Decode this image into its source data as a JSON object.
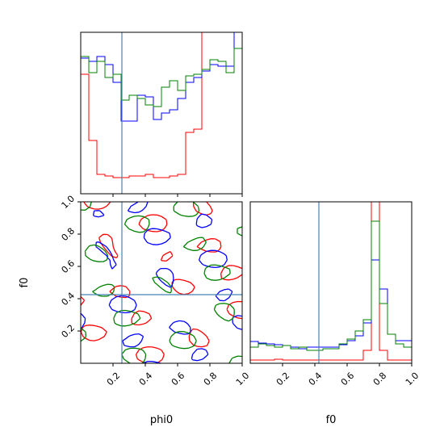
{
  "chart_data": {
    "type": "corner",
    "parameters": [
      "phi0",
      "f0"
    ],
    "truths": {
      "phi0": 0.255,
      "f0": 0.425
    },
    "truth_color": "#4682b4",
    "series": [
      {
        "color": "#ff0000"
      },
      {
        "color": "#0000ff"
      },
      {
        "color": "#008000"
      }
    ],
    "range": [
      0.0,
      1.0
    ],
    "ticks": [
      "0.2",
      "0.4",
      "0.6",
      "0.8",
      "1.0"
    ],
    "tick_values": [
      0.2,
      0.4,
      0.6,
      0.8,
      1.0
    ],
    "hist_phi0": {
      "bins": 20,
      "ylim": [
        0,
        1.0
      ],
      "counts": [
        [
          0.74,
          0.33,
          0.12,
          0.11,
          0.1,
          0.1,
          0.11,
          0.11,
          0.12,
          0.1,
          0.1,
          0.11,
          0.12,
          0.38,
          0.4,
          1.2,
          1.2,
          1.2,
          1.2,
          1.2
        ],
        [
          0.84,
          0.82,
          0.85,
          0.8,
          0.69,
          0.45,
          0.45,
          0.61,
          0.6,
          0.46,
          0.5,
          0.52,
          0.59,
          0.69,
          0.72,
          0.76,
          0.8,
          0.79,
          0.79,
          1.0
        ],
        [
          0.85,
          0.75,
          0.82,
          0.72,
          0.74,
          0.58,
          0.61,
          0.59,
          0.55,
          0.54,
          0.66,
          0.7,
          0.64,
          0.73,
          0.74,
          0.77,
          0.83,
          0.82,
          0.75,
          0.9
        ]
      ]
    },
    "hist_f0": {
      "bins": 20,
      "ylim": [
        0,
        1.0
      ],
      "counts": [
        [
          0.02,
          0.02,
          0.02,
          0.025,
          0.02,
          0.02,
          0.02,
          0.02,
          0.02,
          0.02,
          0.02,
          0.02,
          0.02,
          0.02,
          0.08,
          1.2,
          0.08,
          0.02,
          0.02,
          0.02
        ],
        [
          0.135,
          0.125,
          0.12,
          0.115,
          0.11,
          0.1,
          0.09,
          0.1,
          0.1,
          0.1,
          0.1,
          0.115,
          0.14,
          0.17,
          0.25,
          0.64,
          0.46,
          0.18,
          0.14,
          0.14
        ],
        [
          0.1,
          0.12,
          0.11,
          0.1,
          0.11,
          0.09,
          0.1,
          0.08,
          0.08,
          0.09,
          0.09,
          0.12,
          0.15,
          0.2,
          0.27,
          0.88,
          0.37,
          0.18,
          0.12,
          0.1
        ]
      ]
    },
    "axis_labels": {
      "x_left": "phi0",
      "x_right": "f0",
      "y_left": "f0"
    }
  }
}
